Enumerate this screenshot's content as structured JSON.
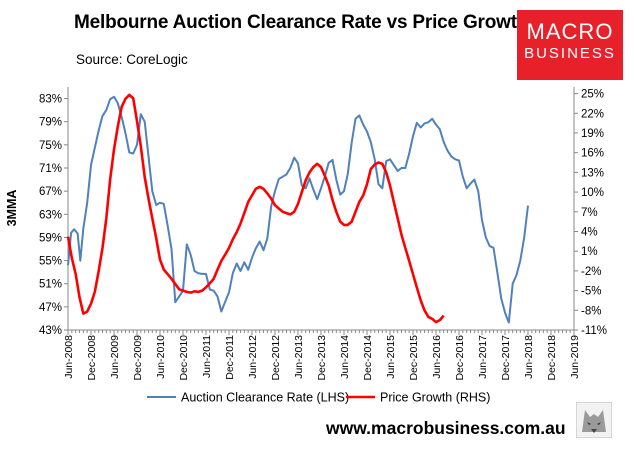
{
  "header": {
    "title": "Melbourne Auction Clearance Rate vs Price Growth",
    "source": "Source: CoreLogic"
  },
  "logo": {
    "line1": "MACRO",
    "line2": "BUSINESS"
  },
  "footer": {
    "website": "www.macrobusiness.com.au"
  },
  "colors": {
    "clearance": "#4f81bd",
    "growth": "#ff0000",
    "axis": "#888888"
  },
  "chart_data": {
    "type": "line",
    "title": "Melbourne Auction Clearance Rate vs Price Growth",
    "ylabel_left": "3MMA",
    "ylim_left": [
      43,
      85
    ],
    "ylim_right": [
      -11,
      26
    ],
    "yticks_left": [
      "43%",
      "47%",
      "51%",
      "55%",
      "59%",
      "63%",
      "67%",
      "71%",
      "75%",
      "79%",
      "83%"
    ],
    "yticks_right": [
      "-11%",
      "-8%",
      "-5%",
      "-2%",
      "1%",
      "4%",
      "7%",
      "10%",
      "13%",
      "16%",
      "19%",
      "22%",
      "25%"
    ],
    "x_start": "Jun-2008",
    "x_end": "Jun-2019",
    "xticks": [
      "Jun-2008",
      "Dec-2008",
      "Jun-2009",
      "Dec-2009",
      "Jun-2010",
      "Dec-2010",
      "Jun-2011",
      "Dec-2011",
      "Jun-2012",
      "Dec-2012",
      "Jun-2013",
      "Dec-2013",
      "Jun-2014",
      "Dec-2014",
      "Jun-2015",
      "Dec-2015",
      "Jun-2016",
      "Dec-2016",
      "Jun-2017",
      "Dec-2017",
      "Jun-2018",
      "Dec-2018",
      "Jun-2019"
    ],
    "legend_position": "bottom",
    "series": [
      {
        "name": "Auction Clearance Rate (LHS)",
        "axis": "left",
        "points": [
          [
            0,
            54.2
          ],
          [
            0.8,
            59.8
          ],
          [
            1.6,
            60.4
          ],
          [
            2.5,
            59.7
          ],
          [
            3.2,
            55
          ],
          [
            4,
            60.5
          ],
          [
            5,
            65
          ],
          [
            6,
            71.5
          ],
          [
            7,
            74.5
          ],
          [
            8,
            77.5
          ],
          [
            9,
            80
          ],
          [
            10,
            81
          ],
          [
            11,
            82.9
          ],
          [
            12,
            83.3
          ],
          [
            13,
            82.2
          ],
          [
            14,
            79.8
          ],
          [
            15,
            77
          ],
          [
            16,
            73.7
          ],
          [
            17,
            73.5
          ],
          [
            18,
            75
          ],
          [
            19,
            80.3
          ],
          [
            20,
            79
          ],
          [
            21,
            73
          ],
          [
            22,
            67
          ],
          [
            23,
            64.6
          ],
          [
            24,
            65
          ],
          [
            25,
            64.8
          ],
          [
            26,
            61
          ],
          [
            27,
            57
          ],
          [
            28,
            47.8
          ],
          [
            29,
            48.8
          ],
          [
            30,
            49.8
          ],
          [
            31,
            57.8
          ],
          [
            32,
            56
          ],
          [
            33,
            53.2
          ],
          [
            34,
            52.8
          ],
          [
            35,
            52.7
          ],
          [
            36,
            52.7
          ],
          [
            37,
            50
          ],
          [
            38,
            49.8
          ],
          [
            39,
            48.8
          ],
          [
            40,
            46.2
          ],
          [
            41,
            47.9
          ],
          [
            42,
            49.5
          ],
          [
            43,
            52.8
          ],
          [
            44,
            54.5
          ],
          [
            45,
            53.2
          ],
          [
            46,
            54.7
          ],
          [
            47,
            53.4
          ],
          [
            48,
            55.5
          ],
          [
            49,
            57.1
          ],
          [
            50,
            58.3
          ],
          [
            51,
            56.8
          ],
          [
            52,
            58.8
          ],
          [
            53,
            64.4
          ],
          [
            54,
            67
          ],
          [
            55,
            69.1
          ],
          [
            56,
            69.5
          ],
          [
            57,
            69.9
          ],
          [
            58,
            71
          ],
          [
            59,
            72.8
          ],
          [
            60,
            71.8
          ],
          [
            61,
            68
          ],
          [
            62,
            67.5
          ],
          [
            63,
            69.2
          ],
          [
            64,
            67.3
          ],
          [
            65,
            65.6
          ],
          [
            66,
            67.5
          ],
          [
            67,
            69.5
          ],
          [
            68,
            71.9
          ],
          [
            69,
            72.4
          ],
          [
            70,
            69
          ],
          [
            71,
            66.4
          ],
          [
            72,
            67
          ],
          [
            73,
            70
          ],
          [
            74,
            75.4
          ],
          [
            75,
            79.5
          ],
          [
            76,
            80.1
          ],
          [
            77,
            78.5
          ],
          [
            78,
            77.3
          ],
          [
            79,
            75.5
          ],
          [
            80,
            72.5
          ],
          [
            81,
            68.2
          ],
          [
            82,
            67.5
          ],
          [
            83,
            72.2
          ],
          [
            84,
            72.5
          ],
          [
            85,
            71.5
          ],
          [
            86,
            70.5
          ],
          [
            87,
            71
          ],
          [
            88,
            71
          ],
          [
            89,
            73.5
          ],
          [
            90,
            76.5
          ],
          [
            91,
            78.8
          ],
          [
            92,
            78
          ],
          [
            93,
            78.7
          ],
          [
            94,
            78.9
          ],
          [
            95,
            79.5
          ],
          [
            96,
            78.5
          ],
          [
            97,
            77.7
          ],
          [
            98,
            75.5
          ],
          [
            99,
            74
          ],
          [
            100,
            73
          ],
          [
            101,
            72.5
          ],
          [
            102,
            72.3
          ],
          [
            103,
            69.5
          ],
          [
            104,
            67.5
          ],
          [
            105,
            68.3
          ],
          [
            106,
            69
          ],
          [
            107,
            67
          ],
          [
            108,
            62
          ],
          [
            109,
            59
          ],
          [
            110,
            57.5
          ],
          [
            111,
            57.2
          ],
          [
            112,
            53
          ],
          [
            113,
            48.5
          ],
          [
            114,
            46
          ],
          [
            115,
            44.3
          ],
          [
            116,
            51
          ],
          [
            117,
            52.5
          ],
          [
            118,
            55
          ],
          [
            119,
            59
          ],
          [
            120,
            64.5
          ]
        ]
      },
      {
        "name": "Price Growth (RHS)",
        "axis": "right",
        "points": [
          [
            0,
            3.2
          ],
          [
            1,
            0
          ],
          [
            2,
            -2.5
          ],
          [
            3,
            -6
          ],
          [
            4,
            -8.5
          ],
          [
            5,
            -8.2
          ],
          [
            6,
            -7
          ],
          [
            7,
            -5.2
          ],
          [
            8,
            -2
          ],
          [
            9,
            1.5
          ],
          [
            10,
            6
          ],
          [
            11,
            12
          ],
          [
            12,
            16.5
          ],
          [
            13,
            20
          ],
          [
            14,
            23
          ],
          [
            15,
            24.2
          ],
          [
            16,
            24.8
          ],
          [
            17,
            24.3
          ],
          [
            18,
            20.8
          ],
          [
            19,
            17
          ],
          [
            20,
            12.3
          ],
          [
            21,
            9
          ],
          [
            22,
            6
          ],
          [
            23,
            3
          ],
          [
            24,
            -0.3
          ],
          [
            25,
            -1.8
          ],
          [
            26,
            -2.5
          ],
          [
            27,
            -3.2
          ],
          [
            28,
            -4
          ],
          [
            29,
            -4.8
          ],
          [
            30,
            -5
          ],
          [
            31,
            -5.2
          ],
          [
            32,
            -5.3
          ],
          [
            33,
            -5.1
          ],
          [
            34,
            -5.2
          ],
          [
            35,
            -5
          ],
          [
            36,
            -4.5
          ],
          [
            37,
            -3.9
          ],
          [
            38,
            -3.2
          ],
          [
            39,
            -1.8
          ],
          [
            40,
            -0.5
          ],
          [
            41,
            0.5
          ],
          [
            42,
            1.5
          ],
          [
            43,
            2.8
          ],
          [
            44,
            3.9
          ],
          [
            45,
            5.2
          ],
          [
            46,
            6.8
          ],
          [
            47,
            8.5
          ],
          [
            48,
            9.5
          ],
          [
            49,
            10.5
          ],
          [
            50,
            10.8
          ],
          [
            51,
            10.5
          ],
          [
            52,
            9.8
          ],
          [
            53,
            9
          ],
          [
            54,
            8
          ],
          [
            55,
            7.5
          ],
          [
            56,
            7
          ],
          [
            57,
            6.8
          ],
          [
            58,
            6.6
          ],
          [
            59,
            7
          ],
          [
            60,
            8.2
          ],
          [
            61,
            10
          ],
          [
            62,
            11.8
          ],
          [
            63,
            13
          ],
          [
            64,
            13.8
          ],
          [
            65,
            14.3
          ],
          [
            66,
            13.8
          ],
          [
            67,
            12.5
          ],
          [
            68,
            11
          ],
          [
            69,
            8.8
          ],
          [
            70,
            7
          ],
          [
            71,
            5.5
          ],
          [
            72,
            5
          ],
          [
            73,
            5
          ],
          [
            74,
            5.5
          ],
          [
            75,
            7
          ],
          [
            76,
            8.5
          ],
          [
            77,
            9.5
          ],
          [
            78,
            11.2
          ],
          [
            79,
            13.5
          ],
          [
            80,
            14.2
          ],
          [
            81,
            14.5
          ],
          [
            82,
            14.3
          ],
          [
            83,
            13
          ],
          [
            84,
            11
          ],
          [
            85,
            8.5
          ],
          [
            86,
            6
          ],
          [
            87,
            3.5
          ],
          [
            88,
            1.5
          ],
          [
            89,
            -0.5
          ],
          [
            90,
            -2.5
          ],
          [
            91,
            -4.5
          ],
          [
            92,
            -6.5
          ],
          [
            93,
            -8
          ],
          [
            94,
            -9
          ],
          [
            95,
            -9.3
          ],
          [
            96,
            -9.8
          ],
          [
            97,
            -9.5
          ],
          [
            98,
            -8.8
          ]
        ]
      }
    ]
  }
}
